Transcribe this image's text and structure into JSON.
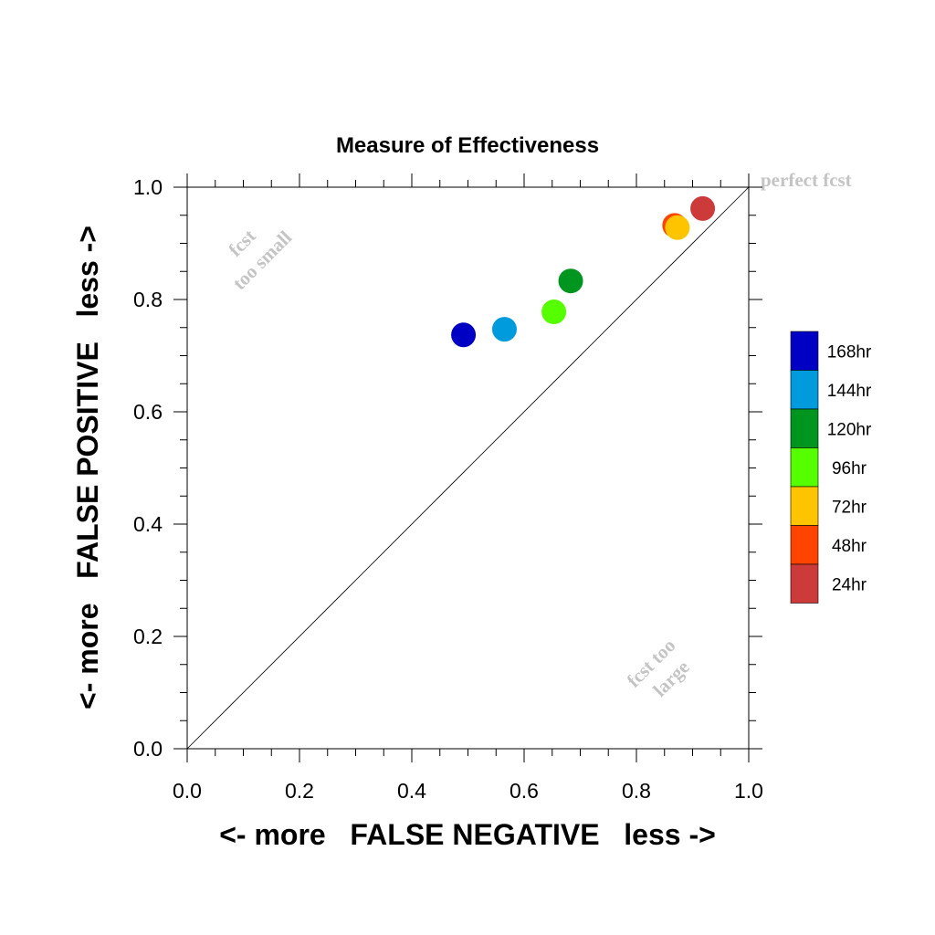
{
  "chart_data": {
    "type": "scatter",
    "title": "Measure of Effectiveness",
    "xlabel": "<- more   FALSE NEGATIVE   less ->",
    "ylabel": "<- more   FALSE POSITIVE   less ->",
    "xlim": [
      0.0,
      1.0
    ],
    "ylim": [
      0.0,
      1.0
    ],
    "xticks": [
      "0.0",
      "0.2",
      "0.4",
      "0.6",
      "0.8",
      "1.0"
    ],
    "yticks": [
      "0.0",
      "0.2",
      "0.4",
      "0.6",
      "0.8",
      "1.0"
    ],
    "grid": false,
    "diagonal_reference_line": true,
    "legend_placement": "right",
    "annotations": {
      "perfect": "perfect fcst",
      "small_line1": "fcst",
      "small_line2": "too small",
      "large_line1": "fcst too",
      "large_line2": "large"
    },
    "series": [
      {
        "name": "168hr",
        "color": "#0000c4",
        "x": 0.492,
        "y": 0.737
      },
      {
        "name": "144hr",
        "color": "#009bdd",
        "x": 0.565,
        "y": 0.747
      },
      {
        "name": "120hr",
        "color": "#00951f",
        "x": 0.683,
        "y": 0.833
      },
      {
        "name": "96hr",
        "color": "#55ff00",
        "x": 0.653,
        "y": 0.778
      },
      {
        "name": "72hr",
        "color": "#ffc400",
        "x": 0.873,
        "y": 0.928
      },
      {
        "name": "48hr",
        "color": "#ff4400",
        "x": 0.868,
        "y": 0.932
      },
      {
        "name": "24hr",
        "color": "#cc3a3a",
        "x": 0.918,
        "y": 0.962
      }
    ],
    "legend_order": [
      "168hr",
      "144hr",
      "120hr",
      "96hr",
      "72hr",
      "48hr",
      "24hr"
    ]
  }
}
